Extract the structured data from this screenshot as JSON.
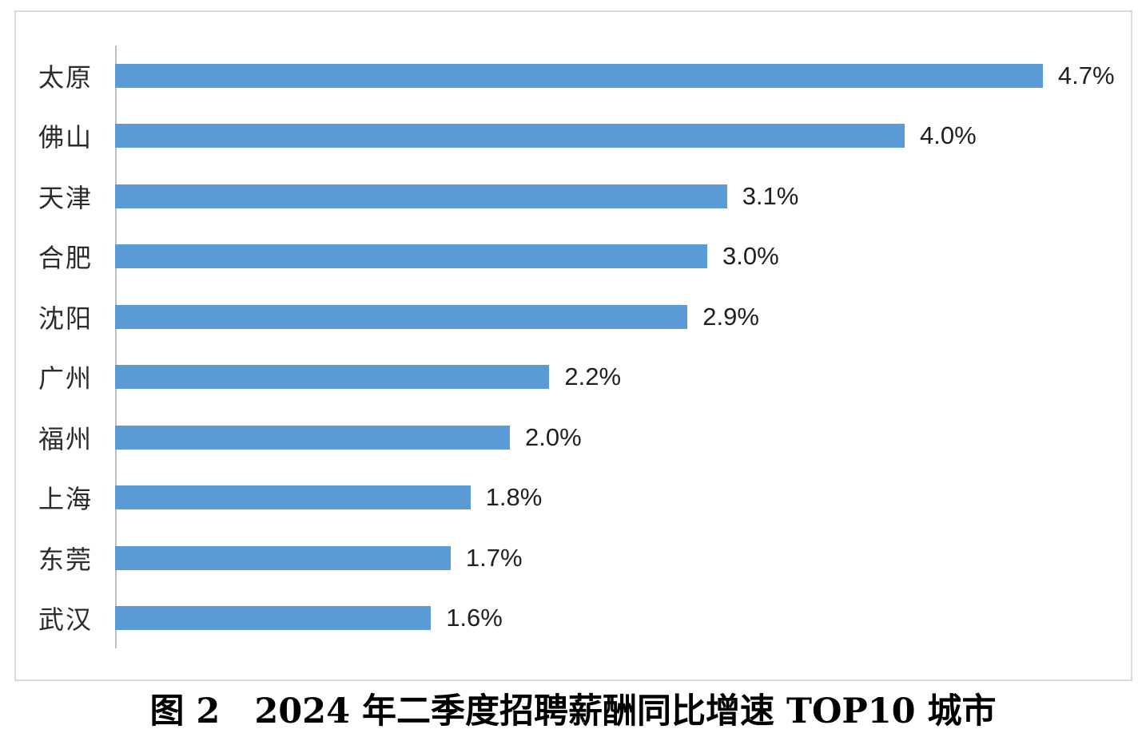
{
  "caption": "图 2　2024 年二季度招聘薪酬同比增速 TOP10 城市",
  "colors": {
    "bar": "#5B9BD5",
    "chart_border": "#D9D9D9",
    "axis_line": "#B9BEC4",
    "text": "#1f1f1f"
  },
  "chart_data": {
    "type": "bar",
    "orientation": "horizontal",
    "title": "图 2　2024 年二季度招聘薪酬同比增速 TOP10 城市",
    "xlabel": "",
    "ylabel": "",
    "categories": [
      "太原",
      "佛山",
      "天津",
      "合肥",
      "沈阳",
      "广州",
      "福州",
      "上海",
      "东莞",
      "武汉"
    ],
    "values": [
      4.7,
      4.0,
      3.1,
      3.0,
      2.9,
      2.2,
      2.0,
      1.8,
      1.7,
      1.6
    ],
    "value_labels": [
      "4.7%",
      "4.0%",
      "3.1%",
      "3.0%",
      "2.9%",
      "2.2%",
      "2.0%",
      "1.8%",
      "1.7%",
      "1.6%"
    ],
    "xlim": [
      0,
      5.17
    ],
    "grid": false,
    "legend": false,
    "data_labels_position": "outside-end"
  }
}
